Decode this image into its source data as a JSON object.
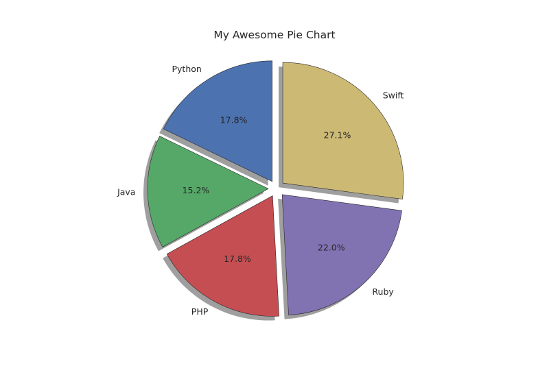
{
  "chart_data": {
    "type": "pie",
    "title": "My Awesome Pie Chart",
    "labels": [
      "Python",
      "Java",
      "PHP",
      "Ruby",
      "Swift"
    ],
    "values": [
      17.8,
      15.2,
      17.8,
      22.0,
      27.1
    ],
    "value_labels": [
      "17.8%",
      "15.2%",
      "17.8%",
      "22.0%",
      "27.1%"
    ],
    "colors": [
      "#4c72b0",
      "#55a868",
      "#c44e52",
      "#8172b2",
      "#ccb974"
    ],
    "start_angle_deg": 90,
    "direction": "counterclockwise",
    "exploded": true,
    "shadow": true
  }
}
